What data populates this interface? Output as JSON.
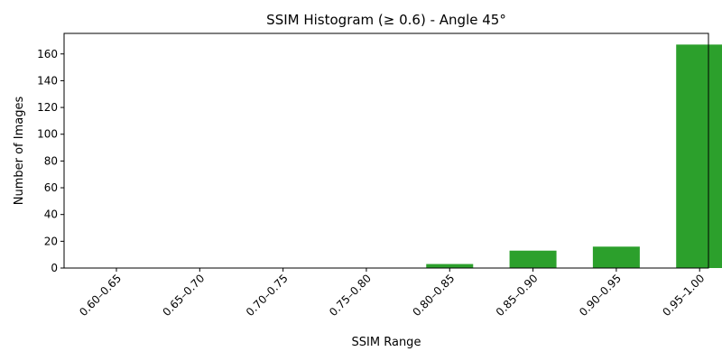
{
  "chart_data": {
    "type": "bar",
    "title": "SSIM Histogram (≥ 0.6) - Angle 45°",
    "xlabel": "SSIM Range",
    "ylabel": "Number of Images",
    "categories": [
      "0.60–0.65",
      "0.65–0.70",
      "0.70–0.75",
      "0.75–0.80",
      "0.80–0.85",
      "0.85–0.90",
      "0.90–0.95",
      "0.95–1.00"
    ],
    "values": [
      0,
      0,
      0,
      0,
      3,
      13,
      16,
      167
    ],
    "ylim": [
      0,
      175.35
    ],
    "yticks": [
      0,
      20,
      40,
      60,
      80,
      100,
      120,
      140,
      160
    ],
    "bar_color": "#2ca02c",
    "grid": false,
    "legend": false
  }
}
